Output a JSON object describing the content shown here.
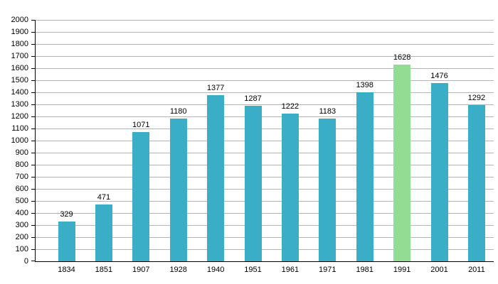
{
  "chart_data": {
    "type": "bar",
    "title": "",
    "xlabel": "",
    "ylabel": "",
    "categories": [
      "1834",
      "1851",
      "1907",
      "1928",
      "1940",
      "1951",
      "1961",
      "1971",
      "1981",
      "1991",
      "2001",
      "2011"
    ],
    "values": [
      329,
      471,
      1071,
      1180,
      1377,
      1287,
      1222,
      1183,
      1398,
      1628,
      1476,
      1292
    ],
    "highlight_index": 9,
    "ylim": [
      0,
      2000
    ],
    "ytick_step": 100,
    "grid": true,
    "legend": "none",
    "colors": {
      "bar": "#39aec6",
      "highlight_bar": "#92dd94",
      "gridline": "#b3b3b3",
      "axis": "#000000",
      "text": "#000000",
      "background": "#ffffff"
    }
  }
}
